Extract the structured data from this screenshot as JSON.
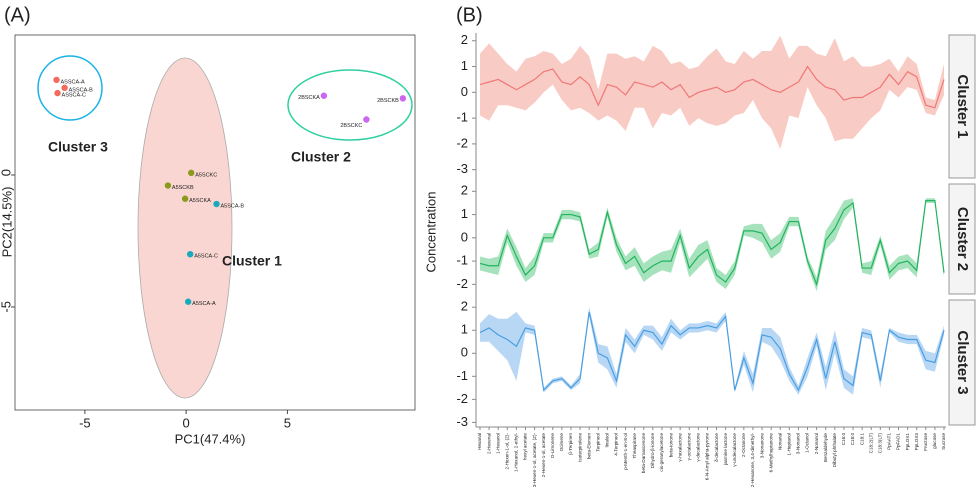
{
  "chart_data": [
    {
      "type": "scatter",
      "title": "(A)",
      "xlabel": "PC1(47.4%)",
      "ylabel": "PC2(14.5%)",
      "xlim": [
        -8.45,
        11.3
      ],
      "ylim": [
        -8.9,
        5.3
      ],
      "xticks": [
        -5,
        0,
        5
      ],
      "yticks": [
        0,
        -5
      ],
      "annotations": [
        "Cluster 3",
        "Cluster 2",
        "Cluster 1"
      ],
      "series": [
        {
          "color": "#f46a5e",
          "labels": [
            "ASSCA-A",
            "ASSCA-B",
            "ASSCA-C"
          ],
          "x": [
            -6.4,
            -6.0,
            -6.35
          ],
          "y": [
            3.6,
            3.3,
            3.1
          ]
        },
        {
          "color": "#cc66ee",
          "labels": [
            "2BSCKA",
            "2BSCKB",
            "2BSCKC"
          ],
          "x": [
            6.8,
            10.7,
            8.9
          ],
          "y": [
            3.0,
            2.9,
            2.1
          ]
        },
        {
          "color": "#8a9a1a",
          "labels": [
            "A5SCKC",
            "A5SCKB",
            "A5SCKA"
          ],
          "x": [
            0.25,
            -0.9,
            -0.05
          ],
          "y": [
            0.08,
            -0.4,
            -0.9
          ]
        },
        {
          "color": "#1aaabb",
          "labels": [
            "A5SCA-B",
            "A5SCA-C",
            "A5SCA-A"
          ],
          "x": [
            1.5,
            0.2,
            0.1
          ],
          "y": [
            -1.1,
            -3.0,
            -4.8
          ]
        }
      ]
    },
    {
      "type": "line",
      "title": "(B)",
      "ylabel": "Concentration",
      "categories": [
        "Hexanal",
        "2-Hexenal",
        "1-Hexanol",
        "2-Hexen-1-ol, (Z)-",
        "1-Hexanol, 2-ethyl-",
        "hexyl acetate",
        "3-Hexen-1-ol, acetate, (Z)-",
        "2-Hexen-1-ol, acetate",
        "D-Limonene",
        "Ocimene",
        "β-Terpinen",
        "Isoterpinolene",
        "beta-Elemen",
        "Terpineol",
        "linalool",
        "4-Terpineol",
        "p-Menth-1-en-8-ol",
        "Theaspirane",
        "beta-Damascenone",
        "Dihydro-β-ionone",
        "cis-geranylacetone",
        "beta-ionone",
        "γ-hexalactone",
        "γ-octalactone",
        "γ-decalactone",
        "6-N-Amyl alpha-pyrone",
        "δ-decalactone",
        "jasmine lactone",
        "γ-undecalactone",
        "2-Octanone",
        "2-Hexanone, 3,4-dimethyl-",
        "3-Nonanone",
        "6-Methylheptanone",
        "Nonanal",
        "1-Heptanol",
        "3-Nonanol",
        "1-Octanol",
        "2-Nonanol",
        "Benzaldehyde",
        "Dibutyl phthalate",
        "C16:0",
        "C18:0",
        "C18:1",
        "C18:2(LT)",
        "C18:3(LT)",
        "PpAAT1",
        "PpFAD1",
        "PpLOX1",
        "PpLOX3",
        "Fructose",
        "glucose",
        "Sucrose"
      ],
      "series": [
        {
          "name": "Cluster 1",
          "color": "#f07878",
          "band_color": "#f9cbc5",
          "label_color": "#f5b020",
          "ylim": [
            -3.4,
            2.3
          ],
          "yticks": [
            -3,
            -2,
            -1,
            0,
            1,
            2
          ],
          "values": [
            0.3,
            0.4,
            0.5,
            0.3,
            0.1,
            0.3,
            0.5,
            0.8,
            0.9,
            0.4,
            0.3,
            0.6,
            0.3,
            -0.5,
            0.3,
            0.2,
            -0.1,
            0.4,
            0.3,
            0.2,
            0.4,
            0.1,
            0.3,
            -0.2,
            0,
            0.1,
            0.2,
            0,
            0.1,
            0.4,
            0.5,
            0.3,
            0.1,
            0,
            0.2,
            0.4,
            1,
            0.5,
            0.2,
            0.1,
            -0.3,
            -0.2,
            -0.2,
            0,
            0.2,
            0.7,
            0.3,
            0.8,
            0.6,
            -0.5,
            -0.6,
            0.5
          ],
          "spread": [
            1.2,
            1.5,
            1,
            0.8,
            0.7,
            1,
            0.9,
            0.8,
            0.6,
            0.7,
            1,
            1.2,
            1.1,
            0.6,
            1.2,
            1.3,
            1.4,
            1,
            0.9,
            1.6,
            1.2,
            1,
            0.9,
            1.1,
            1,
            1.3,
            1.5,
            1.2,
            1,
            1.2,
            0.8,
            1.3,
            1.5,
            2.2,
            1.1,
            1.4,
            0.8,
            1,
            1.2,
            2,
            1.5,
            1.6,
            1.2,
            1,
            0.9,
            0.6,
            0.5,
            0.6,
            0.5,
            0.3,
            0.3,
            0.6
          ]
        },
        {
          "name": "Cluster 2",
          "color": "#22b35e",
          "band_color": "#a6e3bd",
          "label_color": "#2ecc8a",
          "ylim": [
            -2.5,
            2.4
          ],
          "yticks": [
            -2,
            -1,
            0,
            1,
            2
          ],
          "values": [
            -1.1,
            -1.2,
            -1.2,
            0.1,
            -0.8,
            -1.6,
            -1.2,
            0,
            0,
            1,
            1,
            0.9,
            -0.7,
            -0.5,
            1.1,
            -0.3,
            -1.1,
            -0.8,
            -1.5,
            -1.2,
            -1,
            -1,
            0.1,
            -1.3,
            -0.8,
            -0.5,
            -1.6,
            -1.9,
            -1.3,
            0.3,
            0.3,
            0.2,
            -0.5,
            -0.2,
            0.7,
            0.7,
            -1,
            -2,
            -0.1,
            0.4,
            1.2,
            1.5,
            -1.3,
            -1.3,
            -0.1,
            -1.5,
            -1.1,
            -1,
            -1.4,
            1.6,
            1.6,
            -1.5
          ],
          "spread": [
            0.3,
            0.3,
            0.4,
            0.3,
            0.4,
            0.3,
            0.4,
            0.2,
            0.2,
            0.2,
            0.2,
            0.2,
            0.2,
            0.3,
            0.2,
            0.3,
            0.3,
            0.4,
            0.4,
            0.4,
            0.4,
            0.5,
            0.3,
            0.4,
            0.5,
            0.4,
            0.3,
            0.3,
            0.3,
            0.2,
            0.3,
            0.4,
            0.4,
            0.4,
            0.2,
            0.2,
            0.2,
            0.3,
            0.4,
            0.5,
            0.4,
            0.2,
            0.2,
            0.3,
            0.2,
            0.3,
            0.3,
            0.3,
            0.3,
            0.1,
            0.1,
            0.2
          ]
        },
        {
          "name": "Cluster 3",
          "color": "#4a9ee0",
          "band_color": "#b7d7f5",
          "label_color": "#7b6fd0",
          "ylim": [
            -3.2,
            2.4
          ],
          "yticks": [
            -3,
            -2,
            -1,
            0,
            1,
            2
          ],
          "values": [
            0.9,
            1.1,
            0.8,
            0.6,
            0.3,
            1.1,
            1,
            -1.6,
            -1.2,
            -1.1,
            -1.5,
            -1.1,
            1.8,
            0,
            -0.2,
            -1.2,
            0.8,
            0.3,
            1,
            0.9,
            0.4,
            1.2,
            0.8,
            1.1,
            1.1,
            1.2,
            1.1,
            1.6,
            -1.6,
            -0.2,
            -1.3,
            0.8,
            0.7,
            0.2,
            -0.9,
            -1.6,
            -0.6,
            0.6,
            -1.1,
            0.5,
            -1.1,
            -1.4,
            0.9,
            0.8,
            -1.2,
            1,
            0.7,
            0.6,
            0.6,
            -0.3,
            -0.4,
            1
          ],
          "spread": [
            0.4,
            0.6,
            0.7,
            0.9,
            1.5,
            0.2,
            0.2,
            0.1,
            0.1,
            0.1,
            0.1,
            0.2,
            0.2,
            0.4,
            0.5,
            0.3,
            0.3,
            0.3,
            0.2,
            0.3,
            0.3,
            0.3,
            0.2,
            0.2,
            0.2,
            0.2,
            0.2,
            0.2,
            0.1,
            0.3,
            0.4,
            0.3,
            0.4,
            0.5,
            0.3,
            0.2,
            0.4,
            0.3,
            0.5,
            0.5,
            0.4,
            0.4,
            0.2,
            0.2,
            0.3,
            0.1,
            0.2,
            0.2,
            0.2,
            0.4,
            0.4,
            0.2
          ]
        }
      ]
    }
  ]
}
